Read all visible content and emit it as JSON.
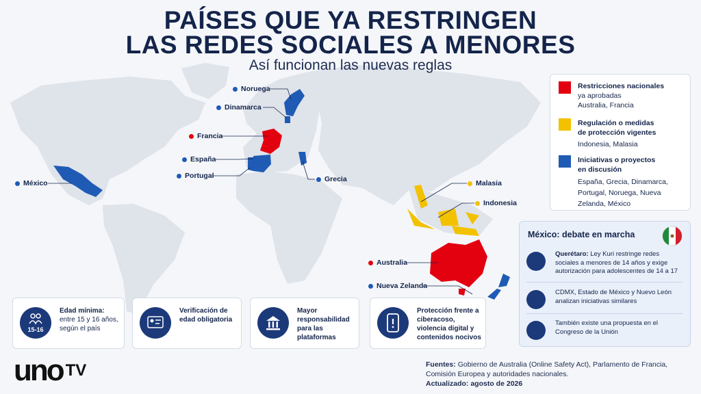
{
  "header": {
    "title_line1": "PAÍSES QUE YA RESTRINGEN",
    "title_line2": "LAS REDES SOCIALES A MENORES",
    "subtitle": "Así funcionan las nuevas reglas"
  },
  "map_labels": [
    {
      "label": "Noruega",
      "color": "#1f5bb5"
    },
    {
      "label": "Dinamarca",
      "color": "#1f5bb5"
    },
    {
      "label": "Francia",
      "color": "#e3000f"
    },
    {
      "label": "España",
      "color": "#1f5bb5"
    },
    {
      "label": "Portugal",
      "color": "#1f5bb5"
    },
    {
      "label": "México",
      "color": "#1f5bb5"
    },
    {
      "label": "Grecia",
      "color": "#1f5bb5"
    },
    {
      "label": "Malasia",
      "color": "#f2c200"
    },
    {
      "label": "Indonesia",
      "color": "#f2c200"
    },
    {
      "label": "Australia",
      "color": "#e3000f"
    },
    {
      "label": "Nueva Zelanda",
      "color": "#1f5bb5"
    }
  ],
  "legend": {
    "items": [
      {
        "title": "Restricciones nacionales",
        "desc": "ya aprobadas",
        "countries": "Australia, Francia",
        "color": "#e3000f"
      },
      {
        "title": "Regulación o medidas de protección vigentes",
        "countries": "Indonesia, Malasia",
        "color": "#f2c200"
      },
      {
        "title": "Iniciativas o proyectos en discusión",
        "countries": "España, Grecia, Dinamarca, Portugal, Noruega, Nueva Zelanda, México",
        "color": "#1f5bb5"
      }
    ]
  },
  "mexico_panel": {
    "title": "México: debate en marcha",
    "items": [
      {
        "bold": "Querétaro:",
        "text": "Ley Kuri restringe redes sociales a menores de 14 años y exige autorización para adolescentes de 14 a 17"
      },
      {
        "text": "CDMX, Estado de México y Nuevo León analizan iniciativas similares"
      },
      {
        "text": "También existe una propuesta en el Congreso de la Unión"
      }
    ]
  },
  "features": [
    {
      "icon_label": "15-16",
      "title": "Edad mínima:",
      "text": "entre 15 y 16 años, según el país"
    },
    {
      "title": "Verificación de edad obligatoria"
    },
    {
      "title": "Mayor responsabilidad para las plataformas"
    },
    {
      "title": "Protección frente a ciberacoso, violencia digital y contenidos nocivos"
    }
  ],
  "footer": {
    "sources_label": "Fuentes:",
    "sources": "Gobierno de Australia (Online Safety Act), Parlamento de Francia, Comisión Europea y autoridades nacionales.",
    "updated_label": "Actualizado:",
    "updated": "agosto de 2026"
  },
  "brand": {
    "logo": "uno",
    "tv": "TV"
  }
}
